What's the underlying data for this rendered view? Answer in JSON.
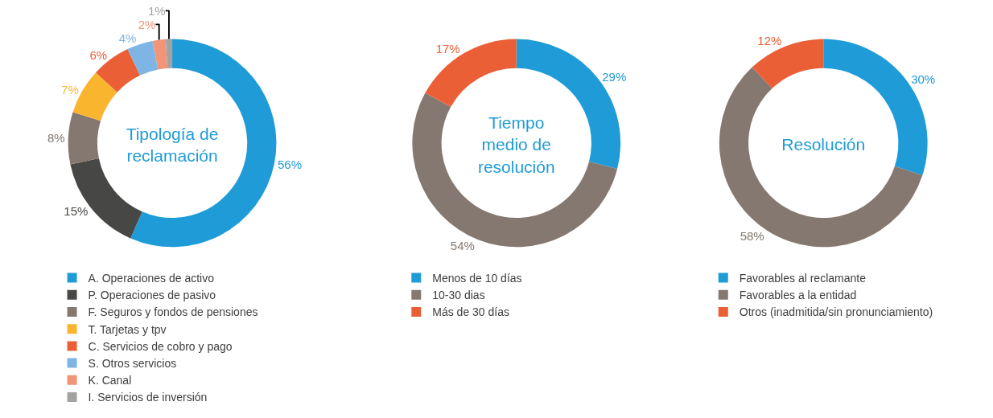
{
  "chart_data": [
    {
      "type": "donut",
      "title": "Tipología de\nreclamación",
      "legend": "bottom",
      "categories": [
        "A. Operaciones de activo",
        "P. Operaciones de pasivo",
        "F. Seguros y fondos de pensiones",
        "T. Tarjetas y tpv",
        "C. Servicios de cobro y pago",
        "S. Otros servicios",
        "K. Canal",
        "I. Servicios de inversión"
      ],
      "values": [
        56,
        15,
        8,
        7,
        6,
        4,
        2,
        1
      ],
      "value_labels": [
        "56%",
        "15%",
        "8%",
        "7%",
        "6%",
        "4%",
        "2%",
        "1%"
      ],
      "colors": [
        "#1f9bd7",
        "#474745",
        "#857870",
        "#fab52f",
        "#ea5f36",
        "#7fb5e5",
        "#f29478",
        "#a3a3a1"
      ]
    },
    {
      "type": "donut",
      "title": "Tiempo\nmedio de\nresolución",
      "legend": "bottom",
      "categories": [
        "Menos de 10 días",
        "10-30 dias",
        "Más de 30 días"
      ],
      "values": [
        29,
        54,
        17
      ],
      "value_labels": [
        "29%",
        "54%",
        "17%"
      ],
      "colors": [
        "#1f9bd7",
        "#857870",
        "#ea5f36"
      ]
    },
    {
      "type": "donut",
      "title": "Resolución",
      "legend": "bottom",
      "categories": [
        "Favorables al reclamante",
        "Favorables a la entidad",
        "Otros (inadmitida/sin pronunciamiento)"
      ],
      "values": [
        30,
        58,
        12
      ],
      "value_labels": [
        "30%",
        "58%",
        "12%"
      ],
      "colors": [
        "#1f9bd7",
        "#857870",
        "#ea5f36"
      ]
    }
  ]
}
